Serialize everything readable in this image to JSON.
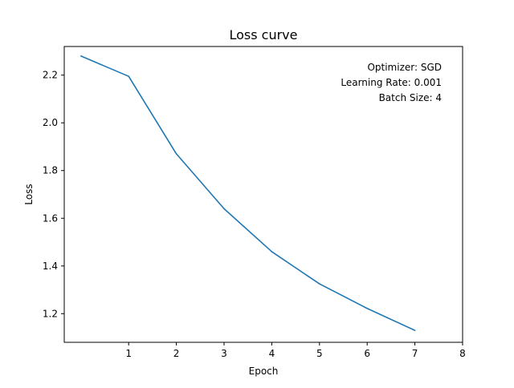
{
  "chart_data": {
    "type": "line",
    "title": "Loss curve",
    "xlabel": "Epoch",
    "ylabel": "Loss",
    "xlim": [
      -0.35,
      8
    ],
    "ylim": [
      1.08,
      2.32
    ],
    "xticks": [
      1,
      2,
      3,
      4,
      5,
      6,
      7,
      8
    ],
    "yticks": [
      1.2,
      1.4,
      1.6,
      1.8,
      2.0,
      2.2
    ],
    "grid": false,
    "line_color": "#1f77b4",
    "series": [
      {
        "x": [
          0,
          1,
          2,
          3,
          4,
          5,
          6,
          7
        ],
        "values": [
          2.28,
          2.195,
          1.87,
          1.64,
          1.46,
          1.325,
          1.222,
          1.13
        ]
      }
    ],
    "annotations": [
      "Optimizer: SGD",
      "Learning Rate: 0.001",
      "Batch Size: 4"
    ],
    "annotation_placement": "top-right"
  }
}
